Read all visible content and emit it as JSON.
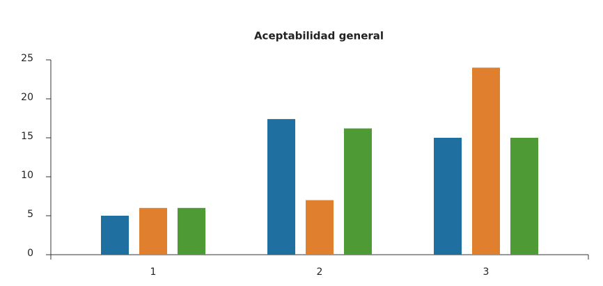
{
  "chart_data": {
    "type": "bar",
    "title": "Aceptabilidad general",
    "categories": [
      "1",
      "2",
      "3"
    ],
    "series": [
      {
        "color": "#1f6fa0",
        "values": [
          5,
          17.4,
          15
        ]
      },
      {
        "color": "#e07f2e",
        "values": [
          6,
          7,
          24
        ]
      },
      {
        "color": "#4e9a35",
        "values": [
          6,
          16.2,
          15
        ]
      }
    ],
    "ylim": [
      0,
      25
    ],
    "yticks": [
      0,
      5,
      10,
      15,
      20,
      25
    ],
    "grid": false
  }
}
